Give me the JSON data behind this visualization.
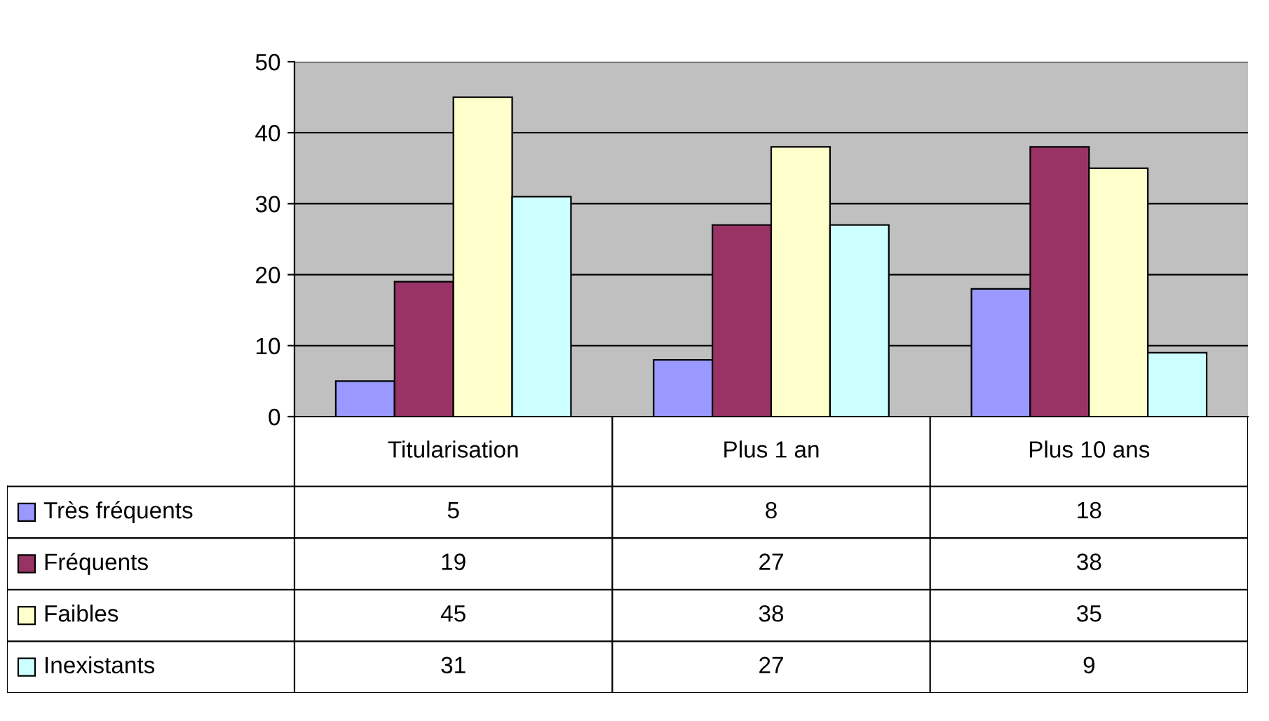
{
  "chart_data": {
    "type": "bar",
    "categories": [
      "Titularisation",
      "Plus 1 an",
      "Plus 10 ans"
    ],
    "series": [
      {
        "name": "Très fréquents",
        "color": "#9999ff",
        "values": [
          5,
          8,
          18
        ]
      },
      {
        "name": "Fréquents",
        "color": "#993366",
        "values": [
          19,
          27,
          38
        ]
      },
      {
        "name": "Faibles",
        "color": "#ffffcc",
        "values": [
          45,
          38,
          35
        ]
      },
      {
        "name": "Inexistants",
        "color": "#ccffff",
        "values": [
          31,
          27,
          9
        ]
      }
    ],
    "ylim": [
      0,
      50
    ],
    "yticks": [
      0,
      10,
      20,
      30,
      40,
      50
    ],
    "grid": "y",
    "legend": "bottom",
    "data_labels": true
  }
}
